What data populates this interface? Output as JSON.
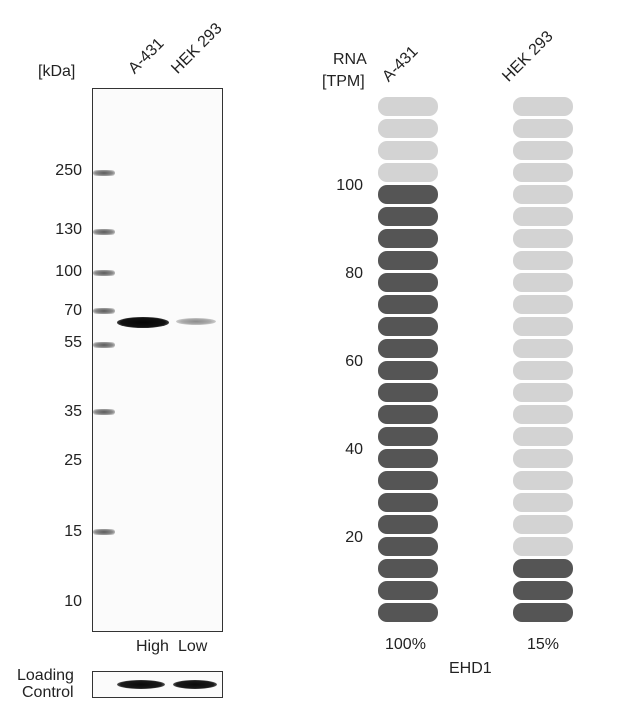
{
  "western_blot": {
    "unit_label": "[kDa]",
    "lanes": [
      "A-431",
      "HEK 293"
    ],
    "mw_markers": [
      "250",
      "130",
      "100",
      "70",
      "55",
      "35",
      "25",
      "15",
      "10"
    ],
    "expression_labels": [
      "High",
      "Low"
    ],
    "loading_control_label": [
      "Loading",
      "Control"
    ]
  },
  "rna": {
    "axis_label": [
      "RNA",
      "[TPM]"
    ],
    "samples": [
      "A-431",
      "HEK 293"
    ],
    "y_ticks": [
      "100",
      "80",
      "60",
      "40",
      "20"
    ],
    "percentages": [
      "100%",
      "15%"
    ],
    "gene": "EHD1",
    "colors": {
      "filled": "#555555",
      "empty": "#d3d3d3"
    }
  },
  "chart_data": {
    "type": "bar",
    "categories": [
      "A-431",
      "HEK 293"
    ],
    "values": [
      100,
      15
    ],
    "ylabel": "RNA [TPM]",
    "yticks": [
      20,
      40,
      60,
      80,
      100
    ],
    "title": "EHD1"
  }
}
